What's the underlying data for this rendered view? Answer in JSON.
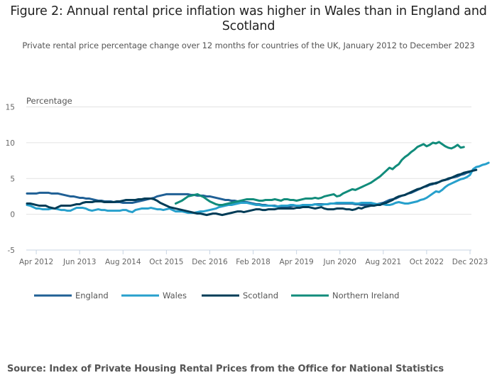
{
  "chart_data": {
    "type": "line",
    "title": "Figure 2: Annual rental price inflation was higher in Wales than in England and Scotland",
    "subtitle": "Private rental price percentage change over 12 months for countries of the UK, January 2012 to December 2023",
    "ylabel": "Percentage",
    "xlabel": "",
    "ylim": [
      -5,
      15
    ],
    "yticks": [
      -5,
      0,
      5,
      10,
      15
    ],
    "x_start": "Jan 2012",
    "x_end": "Dec 2023",
    "x_frequency": "monthly",
    "xticks": [
      {
        "label": "Apr 2012",
        "month_index": 3
      },
      {
        "label": "Jun 2013",
        "month_index": 17
      },
      {
        "label": "Aug 2014",
        "month_index": 31
      },
      {
        "label": "Oct 2015",
        "month_index": 45
      },
      {
        "label": "Dec 2016",
        "month_index": 59
      },
      {
        "label": "Feb 2018",
        "month_index": 73
      },
      {
        "label": "Apr 2019",
        "month_index": 87
      },
      {
        "label": "Jun 2020",
        "month_index": 101
      },
      {
        "label": "Aug 2021",
        "month_index": 115
      },
      {
        "label": "Oct 2022",
        "month_index": 129
      },
      {
        "label": "Dec 2023",
        "month_index": 143
      }
    ],
    "grid": true,
    "legend_position": "bottom",
    "series": [
      {
        "name": "England",
        "color": "#206095",
        "start_index": 0,
        "values": [
          2.9,
          2.9,
          2.9,
          2.9,
          3.0,
          3.0,
          3.0,
          3.0,
          2.9,
          2.9,
          2.9,
          2.8,
          2.7,
          2.6,
          2.5,
          2.5,
          2.4,
          2.3,
          2.3,
          2.2,
          2.2,
          2.1,
          2.0,
          1.9,
          1.9,
          1.8,
          1.8,
          1.8,
          1.7,
          1.7,
          1.7,
          1.6,
          1.6,
          1.6,
          1.6,
          1.7,
          1.8,
          1.9,
          2.0,
          2.1,
          2.2,
          2.3,
          2.5,
          2.6,
          2.7,
          2.8,
          2.8,
          2.8,
          2.8,
          2.8,
          2.8,
          2.8,
          2.8,
          2.7,
          2.7,
          2.6,
          2.6,
          2.6,
          2.5,
          2.5,
          2.4,
          2.3,
          2.2,
          2.1,
          2.0,
          2.0,
          1.9,
          1.9,
          1.8,
          1.8,
          1.7,
          1.7,
          1.6,
          1.5,
          1.4,
          1.4,
          1.3,
          1.3,
          1.2,
          1.2,
          1.2,
          1.1,
          1.1,
          1.1,
          1.1,
          1.1,
          1.2,
          1.2,
          1.2,
          1.3,
          1.3,
          1.3,
          1.3,
          1.4,
          1.4,
          1.4,
          1.4,
          1.4,
          1.5,
          1.5,
          1.5,
          1.5,
          1.5,
          1.5,
          1.5,
          1.5,
          1.4,
          1.4,
          1.3,
          1.3,
          1.3,
          1.3,
          1.4,
          1.4,
          1.5,
          1.6,
          1.8,
          2.0,
          2.1,
          2.2,
          2.4,
          2.6,
          2.7,
          2.9,
          3.0,
          3.2,
          3.4,
          3.6,
          3.8,
          3.9,
          4.1,
          4.2,
          4.4,
          4.5,
          4.7,
          4.8,
          4.9,
          5.1,
          5.2,
          5.3,
          5.5,
          5.6,
          5.8,
          5.9,
          6.1,
          6.2
        ]
      },
      {
        "name": "Wales",
        "color": "#27a0cc",
        "start_index": 0,
        "values": [
          1.3,
          1.2,
          1.0,
          0.8,
          0.8,
          0.7,
          0.7,
          0.7,
          0.8,
          0.8,
          0.7,
          0.6,
          0.6,
          0.5,
          0.5,
          0.7,
          0.9,
          0.9,
          0.9,
          0.8,
          0.6,
          0.5,
          0.6,
          0.7,
          0.6,
          0.6,
          0.5,
          0.5,
          0.5,
          0.5,
          0.5,
          0.6,
          0.6,
          0.4,
          0.3,
          0.6,
          0.7,
          0.8,
          0.8,
          0.8,
          0.9,
          0.8,
          0.7,
          0.7,
          0.6,
          0.7,
          0.8,
          0.6,
          0.4,
          0.4,
          0.4,
          0.3,
          0.2,
          0.2,
          0.2,
          0.3,
          0.4,
          0.4,
          0.5,
          0.6,
          0.7,
          0.8,
          1.0,
          1.1,
          1.2,
          1.3,
          1.3,
          1.4,
          1.5,
          1.6,
          1.6,
          1.6,
          1.5,
          1.4,
          1.3,
          1.3,
          1.2,
          1.2,
          1.2,
          1.2,
          1.1,
          1.1,
          1.2,
          1.2,
          1.2,
          1.3,
          1.3,
          1.2,
          1.2,
          1.3,
          1.3,
          1.3,
          1.3,
          1.4,
          1.3,
          1.3,
          1.4,
          1.4,
          1.5,
          1.5,
          1.6,
          1.6,
          1.6,
          1.6,
          1.6,
          1.6,
          1.5,
          1.5,
          1.6,
          1.6,
          1.6,
          1.6,
          1.5,
          1.4,
          1.4,
          1.4,
          1.3,
          1.3,
          1.4,
          1.6,
          1.7,
          1.6,
          1.5,
          1.5,
          1.6,
          1.7,
          1.8,
          2.0,
          2.1,
          2.3,
          2.6,
          2.9,
          3.2,
          3.1,
          3.4,
          3.8,
          4.1,
          4.3,
          4.5,
          4.7,
          4.9,
          5.0,
          5.2,
          5.5,
          6.3,
          6.6,
          6.7,
          6.9,
          7.0,
          7.2
        ]
      },
      {
        "name": "Scotland",
        "color": "#003c57",
        "start_index": 0,
        "values": [
          1.5,
          1.5,
          1.4,
          1.3,
          1.2,
          1.2,
          1.2,
          1.0,
          0.9,
          0.8,
          1.0,
          1.2,
          1.2,
          1.2,
          1.2,
          1.3,
          1.4,
          1.4,
          1.6,
          1.7,
          1.7,
          1.7,
          1.8,
          1.8,
          1.8,
          1.7,
          1.7,
          1.7,
          1.7,
          1.8,
          1.8,
          1.9,
          2.0,
          2.0,
          2.0,
          2.0,
          2.1,
          2.1,
          2.2,
          2.2,
          2.2,
          2.1,
          1.9,
          1.6,
          1.4,
          1.2,
          1.0,
          0.9,
          0.8,
          0.7,
          0.6,
          0.5,
          0.4,
          0.3,
          0.2,
          0.1,
          0.1,
          0.0,
          -0.1,
          0.0,
          0.1,
          0.1,
          0.0,
          -0.1,
          0.0,
          0.1,
          0.2,
          0.3,
          0.4,
          0.4,
          0.3,
          0.4,
          0.5,
          0.6,
          0.7,
          0.7,
          0.6,
          0.6,
          0.7,
          0.7,
          0.7,
          0.8,
          0.8,
          0.8,
          0.8,
          0.8,
          0.8,
          0.9,
          0.9,
          1.0,
          1.0,
          1.0,
          0.9,
          0.8,
          0.9,
          1.0,
          0.8,
          0.7,
          0.7,
          0.7,
          0.8,
          0.8,
          0.8,
          0.7,
          0.7,
          0.6,
          0.7,
          0.9,
          0.8,
          1.0,
          1.1,
          1.2,
          1.2,
          1.3,
          1.3,
          1.5,
          1.6,
          1.8,
          2.0,
          2.3,
          2.5,
          2.6,
          2.7,
          2.9,
          3.1,
          3.3,
          3.5,
          3.6,
          3.8,
          4.0,
          4.2,
          4.3,
          4.3,
          4.5,
          4.7,
          4.8,
          5.0,
          5.1,
          5.3,
          5.5,
          5.6,
          5.8,
          5.9,
          6.0,
          6.1,
          6.2
        ]
      },
      {
        "name": "Northern Ireland",
        "color": "#118c7b",
        "start_index": 48,
        "values": [
          1.5,
          1.7,
          1.9,
          2.2,
          2.5,
          2.6,
          2.7,
          2.8,
          2.6,
          2.4,
          2.1,
          1.8,
          1.6,
          1.4,
          1.3,
          1.3,
          1.4,
          1.5,
          1.6,
          1.7,
          1.8,
          1.9,
          2.0,
          2.1,
          2.1,
          2.1,
          2.0,
          1.9,
          1.9,
          2.0,
          2.0,
          2.0,
          2.1,
          2.0,
          1.9,
          2.1,
          2.1,
          2.0,
          2.0,
          1.9,
          2.0,
          2.1,
          2.2,
          2.2,
          2.2,
          2.3,
          2.2,
          2.3,
          2.5,
          2.6,
          2.7,
          2.8,
          2.5,
          2.6,
          2.9,
          3.1,
          3.3,
          3.5,
          3.4,
          3.6,
          3.8,
          4.0,
          4.2,
          4.4,
          4.7,
          5.0,
          5.3,
          5.7,
          6.1,
          6.5,
          6.3,
          6.7,
          7.0,
          7.6,
          8.0,
          8.3,
          8.7,
          9.0,
          9.4,
          9.6,
          9.8,
          9.5,
          9.7,
          10.0,
          9.9,
          10.1,
          9.8,
          9.5,
          9.3,
          9.2,
          9.4,
          9.7,
          9.3,
          9.4
        ]
      }
    ]
  },
  "source": "Source: Index of Private Housing Rental Prices from the Office for National Statistics"
}
